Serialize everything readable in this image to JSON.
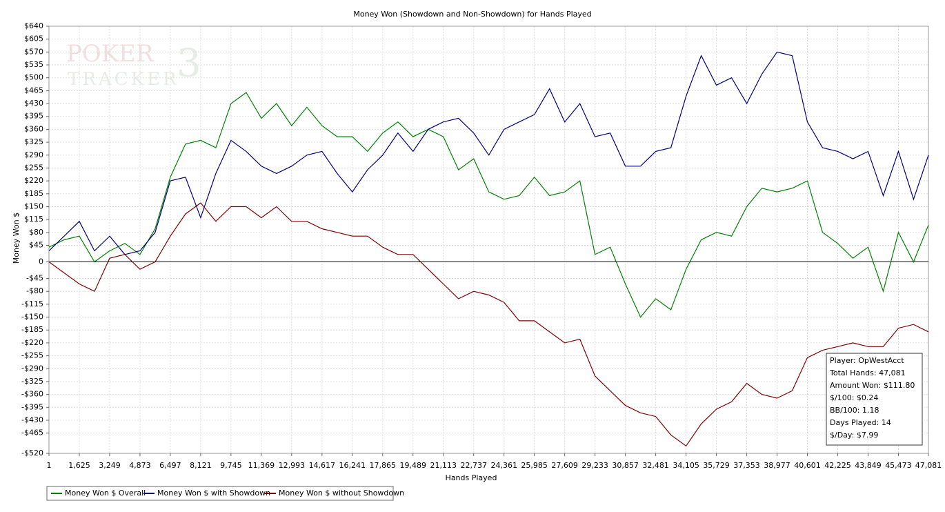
{
  "chart_data": {
    "type": "line",
    "title": "Money Won (Showdown and Non-Showdown) for Hands Played",
    "x_label": "Hands Played",
    "y_label": "Money Won $",
    "watermark": [
      "POKER",
      "TRACKER",
      "3"
    ],
    "xlim": [
      1,
      47081
    ],
    "ylim": [
      -520,
      640
    ],
    "grid": true,
    "legend": "bottom-left",
    "xticks": [
      1,
      {
        "value": 1625,
        "label": "1,625"
      },
      {
        "value": 3249,
        "label": "3,249"
      },
      {
        "value": 4873,
        "label": "4,873"
      },
      {
        "value": 6497,
        "label": "6,497"
      },
      {
        "value": 8121,
        "label": "8,121"
      },
      {
        "value": 9745,
        "label": "9,745"
      },
      {
        "value": 11369,
        "label": "11,369"
      },
      {
        "value": 12993,
        "label": "12,993"
      },
      {
        "value": 14617,
        "label": "14,617"
      },
      {
        "value": 16241,
        "label": "16,241"
      },
      {
        "value": 17865,
        "label": "17,865"
      },
      {
        "value": 19489,
        "label": "19,489"
      },
      {
        "value": 21113,
        "label": "21,113"
      },
      {
        "value": 22737,
        "label": "22,737"
      },
      {
        "value": 24361,
        "label": "24,361"
      },
      {
        "value": 25985,
        "label": "25,985"
      },
      {
        "value": 27609,
        "label": "27,609"
      },
      {
        "value": 29233,
        "label": "29,233"
      },
      {
        "value": 30857,
        "label": "30,857"
      },
      {
        "value": 32481,
        "label": "32,481"
      },
      {
        "value": 34105,
        "label": "34,105"
      },
      {
        "value": 35729,
        "label": "35,729"
      },
      {
        "value": 37353,
        "label": "37,353"
      },
      {
        "value": 38977,
        "label": "38,977"
      },
      {
        "value": 40601,
        "label": "40,601"
      },
      {
        "value": 42225,
        "label": "42,225"
      },
      {
        "value": 43849,
        "label": "43,849"
      },
      {
        "value": 45473,
        "label": "45,473"
      },
      {
        "value": 47081,
        "label": "47,081"
      }
    ],
    "yticks": [
      {
        "value": 640,
        "label": "$640"
      },
      {
        "value": 605,
        "label": "$605"
      },
      {
        "value": 570,
        "label": "$570"
      },
      {
        "value": 535,
        "label": "$535"
      },
      {
        "value": 500,
        "label": "$500"
      },
      {
        "value": 465,
        "label": "$465"
      },
      {
        "value": 430,
        "label": "$430"
      },
      {
        "value": 395,
        "label": "$395"
      },
      {
        "value": 360,
        "label": "$360"
      },
      {
        "value": 325,
        "label": "$325"
      },
      {
        "value": 290,
        "label": "$290"
      },
      {
        "value": 255,
        "label": "$255"
      },
      {
        "value": 220,
        "label": "$220"
      },
      {
        "value": 185,
        "label": "$185"
      },
      {
        "value": 150,
        "label": "$150"
      },
      {
        "value": 115,
        "label": "$115"
      },
      {
        "value": 80,
        "label": "$80"
      },
      {
        "value": 45,
        "label": "$45"
      },
      0,
      {
        "value": -45,
        "label": "-$45"
      },
      {
        "value": -80,
        "label": "-$80"
      },
      {
        "value": -115,
        "label": "-$115"
      },
      {
        "value": -150,
        "label": "-$150"
      },
      {
        "value": -185,
        "label": "-$185"
      },
      {
        "value": -220,
        "label": "-$220"
      },
      {
        "value": -255,
        "label": "-$255"
      },
      {
        "value": -290,
        "label": "-$290"
      },
      {
        "value": -325,
        "label": "-$325"
      },
      {
        "value": -360,
        "label": "-$360"
      },
      {
        "value": -395,
        "label": "-$395"
      },
      {
        "value": -430,
        "label": "-$430"
      },
      {
        "value": -465,
        "label": "-$465"
      },
      {
        "value": -520,
        "label": "-$520"
      }
    ],
    "x": [
      1,
      813,
      1625,
      2437,
      3249,
      4061,
      4873,
      5685,
      6497,
      7309,
      8121,
      8933,
      9745,
      10557,
      11369,
      12181,
      12993,
      13805,
      14617,
      15429,
      16241,
      17053,
      17865,
      18677,
      19489,
      20301,
      21113,
      21925,
      22737,
      23549,
      24361,
      25173,
      25985,
      26797,
      27609,
      28421,
      29233,
      30045,
      30857,
      31669,
      32481,
      33293,
      34105,
      34917,
      35729,
      36541,
      37353,
      38165,
      38977,
      39789,
      40601,
      41413,
      42225,
      43037,
      43849,
      44661,
      45473,
      46285,
      47081
    ],
    "series": [
      {
        "name": "Money Won $ Overall",
        "color": "#008000",
        "values": [
          40,
          60,
          70,
          0,
          30,
          50,
          20,
          90,
          230,
          320,
          330,
          310,
          430,
          460,
          390,
          430,
          370,
          420,
          370,
          340,
          340,
          300,
          350,
          380,
          340,
          360,
          340,
          250,
          280,
          190,
          170,
          180,
          230,
          180,
          190,
          220,
          20,
          40,
          -60,
          -150,
          -100,
          -130,
          -20,
          60,
          80,
          70,
          150,
          200,
          190,
          200,
          220,
          80,
          50,
          10,
          40,
          -80,
          80,
          0,
          100
        ]
      },
      {
        "name": "Money Won $ with Showdown",
        "color": "#000080",
        "values": [
          30,
          70,
          110,
          30,
          70,
          20,
          30,
          80,
          220,
          230,
          120,
          240,
          330,
          300,
          260,
          240,
          260,
          290,
          300,
          240,
          190,
          250,
          290,
          350,
          300,
          360,
          380,
          390,
          350,
          290,
          360,
          380,
          400,
          470,
          380,
          430,
          340,
          350,
          260,
          260,
          300,
          310,
          450,
          560,
          480,
          500,
          430,
          510,
          570,
          560,
          380,
          310,
          300,
          280,
          300,
          180,
          300,
          170,
          290
        ]
      },
      {
        "name": "Money Won $ without Showdown",
        "color": "#800000",
        "values": [
          0,
          -30,
          -60,
          -80,
          10,
          20,
          -20,
          0,
          70,
          130,
          160,
          110,
          150,
          150,
          120,
          150,
          110,
          110,
          90,
          80,
          70,
          70,
          40,
          20,
          20,
          -20,
          -60,
          -100,
          -80,
          -90,
          -110,
          -160,
          -160,
          -190,
          -220,
          -210,
          -310,
          -350,
          -390,
          -410,
          -420,
          -470,
          -500,
          -440,
          -400,
          -380,
          -330,
          -360,
          -370,
          -350,
          -260,
          -240,
          -230,
          -220,
          -230,
          -230,
          -180,
          -170,
          -190
        ]
      }
    ],
    "info_box": [
      "Player: OpWestAcct",
      "Total Hands: 47,081",
      "Amount Won: $111.80",
      "$/100: $0.24",
      "BB/100: 1.18",
      "Days Played: 14",
      "$/Day: $7.99"
    ]
  }
}
